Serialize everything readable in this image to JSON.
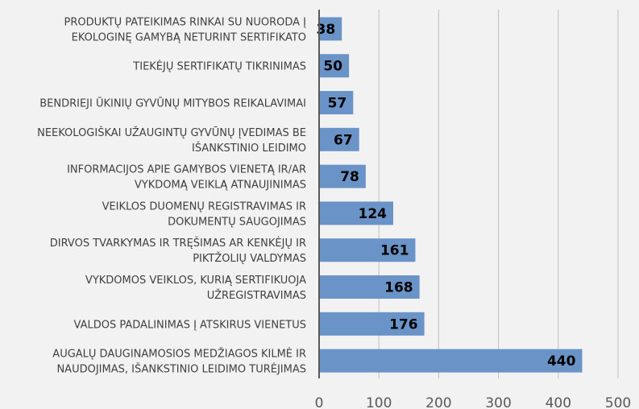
{
  "chart_data": {
    "type": "bar",
    "orientation": "horizontal",
    "categories": [
      [
        "PRODUKTŲ PATEIKIMAS RINKAI SU NUORODA Į",
        "EKOLOGINĘ GAMYBĄ NETURINT SERTIFIKATO"
      ],
      [
        "TIEKĖJŲ SERTIFIKATŲ TIKRINIMAS"
      ],
      [
        "BENDRIEJI ŪKINIŲ GYVŪNŲ  MITYBOS REIKALAVIMAI"
      ],
      [
        "NEEKOLOGIŠKAI UŽAUGINTŲ GYVŪNŲ ĮVEDIMAS BE",
        "IŠANKSTINIO LEIDIMO"
      ],
      [
        "INFORMACIJOS APIE GAMYBOS VIENETĄ IR/AR",
        "VYKDOMĄ VEIKLĄ ATNAUJINIMAS"
      ],
      [
        "VEIKLOS DUOMENŲ REGISTRAVIMAS IR",
        "DOKUMENTŲ SAUGOJIMAS"
      ],
      [
        "DIRVOS TVARKYMAS IR TRĘŠIMAS AR KENKĖJŲ IR",
        "PIKTŽOLIŲ VALDYMAS"
      ],
      [
        "VYKDOMOS VEIKLOS, KURIĄ SERTIFIKUOJA",
        "UŽREGISTRAVIMAS"
      ],
      [
        "VALDOS PADALINIMAS Į ATSKIRUS VIENETUS"
      ],
      [
        "AUGALŲ DAUGINAMOSIOS MEDŽIAGOS KILMĖ IR",
        "NAUDOJIMAS, IŠANKSTINIO LEIDIMO TURĖJIMAS"
      ]
    ],
    "values": [
      38,
      50,
      57,
      67,
      78,
      124,
      161,
      168,
      176,
      440
    ],
    "xlim": [
      0,
      500
    ],
    "xticks": [
      "0",
      "100",
      "200",
      "300",
      "400",
      "500"
    ],
    "grid": true,
    "bar_color": "#6a93c8",
    "grid_color": "#bfbfbf",
    "axis_color": "#595959"
  }
}
